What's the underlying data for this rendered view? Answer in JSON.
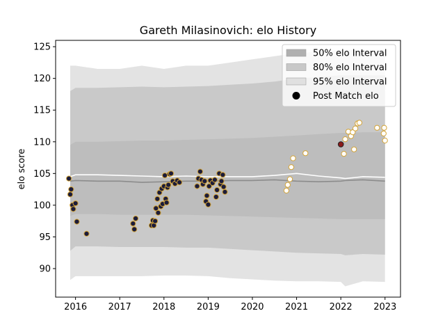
{
  "chart_data": {
    "type": "scatter",
    "title": "Gareth Milasinovich: elo History",
    "xlabel": "",
    "ylabel": "elo score",
    "xlim": [
      2015.55,
      2023.35
    ],
    "ylim": [
      85.5,
      126
    ],
    "x_ticks": [
      {
        "value": 2016,
        "label": "2016"
      },
      {
        "value": 2017,
        "label": "2017"
      },
      {
        "value": 2018,
        "label": "2018"
      },
      {
        "value": 2019,
        "label": "2019"
      },
      {
        "value": 2020,
        "label": "2020"
      },
      {
        "value": 2021,
        "label": "2021"
      },
      {
        "value": 2022,
        "label": "2022"
      },
      {
        "value": 2023,
        "label": "2023"
      }
    ],
    "y_ticks": [
      {
        "value": 90,
        "label": "90"
      },
      {
        "value": 95,
        "label": "95"
      },
      {
        "value": 100,
        "label": "100"
      },
      {
        "value": 105,
        "label": "105"
      },
      {
        "value": 110,
        "label": "110"
      },
      {
        "value": 115,
        "label": "115"
      },
      {
        "value": 120,
        "label": "120"
      },
      {
        "value": 125,
        "label": "125"
      }
    ],
    "grid": false,
    "legend_position": "top-right",
    "legend": [
      {
        "label": "50% elo Interval",
        "kind": "patch",
        "color": "#b0b0b0"
      },
      {
        "label": "80% elo Interval",
        "kind": "patch",
        "color": "#c8c8c8"
      },
      {
        "label": "95% elo Interval",
        "kind": "patch",
        "color": "#e0e0e0"
      },
      {
        "label": "Post Match elo",
        "kind": "marker",
        "color": "#000000"
      }
    ],
    "colors": {
      "band95": "#e3e3e3",
      "band80": "#c9c9c9",
      "band50": "#bdbdbd",
      "median_line": "#8c8c8c",
      "mean_line": "#ffffff",
      "dot_dark_fill": "#1c1c3a",
      "dot_edge": "#d4a437",
      "dot_light_fill": "#ffffff",
      "dot_current_fill": "#8b1a1a"
    },
    "interval_x": [
      2015.88,
      2016.0,
      2016.5,
      2017.0,
      2017.5,
      2018.0,
      2018.5,
      2019.0,
      2019.5,
      2020.0,
      2020.5,
      2021.0,
      2021.5,
      2022.0,
      2022.1,
      2022.5,
      2023.0
    ],
    "band95": {
      "upper": [
        122.0,
        122.0,
        121.5,
        121.5,
        122.0,
        121.5,
        122.0,
        122.0,
        122.5,
        123.0,
        123.5,
        124.0,
        124.2,
        124.5,
        124.5,
        124.5,
        124.5
      ],
      "lower": [
        88.2,
        88.8,
        88.8,
        88.8,
        88.8,
        88.9,
        88.9,
        88.8,
        88.5,
        88.3,
        88.1,
        88.0,
        88.0,
        87.9,
        87.2,
        88.0,
        87.9
      ]
    },
    "band80": {
      "upper": [
        118.0,
        118.5,
        118.5,
        118.6,
        118.7,
        118.6,
        118.7,
        118.8,
        119.0,
        119.2,
        119.5,
        120.0,
        120.2,
        120.5,
        120.5,
        120.5,
        120.5
      ],
      "lower": [
        92.8,
        93.5,
        93.5,
        93.4,
        93.4,
        93.4,
        93.3,
        93.3,
        93.1,
        92.9,
        92.7,
        92.5,
        92.4,
        92.3,
        92.1,
        92.3,
        92.2
      ]
    },
    "band50": {
      "upper": [
        109.5,
        110.0,
        110.0,
        110.1,
        110.2,
        110.2,
        110.3,
        110.4,
        110.5,
        110.6,
        110.8,
        111.0,
        111.2,
        111.4,
        111.4,
        111.5,
        111.5
      ],
      "lower": [
        98.3,
        98.6,
        98.6,
        98.5,
        98.5,
        98.5,
        98.5,
        98.4,
        98.3,
        98.2,
        98.1,
        98.0,
        97.9,
        97.8,
        97.8,
        97.8,
        97.8
      ]
    },
    "median_line": [
      103.8,
      103.9,
      103.8,
      103.8,
      103.6,
      103.7,
      103.8,
      103.8,
      103.9,
      103.9,
      104.0,
      103.8,
      103.7,
      103.8,
      103.9,
      104.0,
      103.8
    ],
    "mean_line": [
      104.5,
      104.8,
      104.8,
      104.7,
      104.6,
      104.5,
      104.6,
      104.5,
      104.5,
      104.5,
      104.7,
      105.0,
      104.6,
      104.3,
      104.2,
      104.5,
      104.4
    ],
    "points_dark": [
      {
        "x": 2015.85,
        "y": 104.2
      },
      {
        "x": 2015.88,
        "y": 101.7
      },
      {
        "x": 2015.9,
        "y": 102.5
      },
      {
        "x": 2015.93,
        "y": 100.0
      },
      {
        "x": 2015.95,
        "y": 99.4
      },
      {
        "x": 2016.0,
        "y": 100.3
      },
      {
        "x": 2016.03,
        "y": 97.4
      },
      {
        "x": 2016.25,
        "y": 95.5
      },
      {
        "x": 2017.3,
        "y": 97.1
      },
      {
        "x": 2017.33,
        "y": 96.2
      },
      {
        "x": 2017.36,
        "y": 97.9
      },
      {
        "x": 2017.72,
        "y": 96.8
      },
      {
        "x": 2017.75,
        "y": 97.6
      },
      {
        "x": 2017.77,
        "y": 96.8
      },
      {
        "x": 2017.8,
        "y": 97.5
      },
      {
        "x": 2017.82,
        "y": 99.5
      },
      {
        "x": 2017.85,
        "y": 101.0
      },
      {
        "x": 2017.87,
        "y": 98.8
      },
      {
        "x": 2017.9,
        "y": 102.0
      },
      {
        "x": 2017.93,
        "y": 99.8
      },
      {
        "x": 2017.95,
        "y": 102.6
      },
      {
        "x": 2017.97,
        "y": 100.2
      },
      {
        "x": 2018.0,
        "y": 103.0
      },
      {
        "x": 2018.02,
        "y": 104.7
      },
      {
        "x": 2018.04,
        "y": 101.0
      },
      {
        "x": 2018.06,
        "y": 100.4
      },
      {
        "x": 2018.08,
        "y": 102.8
      },
      {
        "x": 2018.1,
        "y": 103.2
      },
      {
        "x": 2018.13,
        "y": 104.9
      },
      {
        "x": 2018.16,
        "y": 105.0
      },
      {
        "x": 2018.2,
        "y": 103.8
      },
      {
        "x": 2018.25,
        "y": 103.4
      },
      {
        "x": 2018.3,
        "y": 103.9
      },
      {
        "x": 2018.35,
        "y": 103.6
      },
      {
        "x": 2018.75,
        "y": 103.0
      },
      {
        "x": 2018.78,
        "y": 104.2
      },
      {
        "x": 2018.82,
        "y": 105.3
      },
      {
        "x": 2018.85,
        "y": 104.0
      },
      {
        "x": 2018.88,
        "y": 103.3
      },
      {
        "x": 2018.92,
        "y": 103.8
      },
      {
        "x": 2018.95,
        "y": 100.6
      },
      {
        "x": 2018.97,
        "y": 101.5
      },
      {
        "x": 2019.0,
        "y": 100.1
      },
      {
        "x": 2019.02,
        "y": 103.0
      },
      {
        "x": 2019.05,
        "y": 103.9
      },
      {
        "x": 2019.1,
        "y": 103.5
      },
      {
        "x": 2019.15,
        "y": 104.0
      },
      {
        "x": 2019.18,
        "y": 101.3
      },
      {
        "x": 2019.2,
        "y": 102.4
      },
      {
        "x": 2019.25,
        "y": 105.0
      },
      {
        "x": 2019.28,
        "y": 103.3
      },
      {
        "x": 2019.3,
        "y": 103.8
      },
      {
        "x": 2019.33,
        "y": 104.8
      },
      {
        "x": 2019.35,
        "y": 102.9
      },
      {
        "x": 2019.38,
        "y": 102.1
      }
    ],
    "points_light": [
      {
        "x": 2020.77,
        "y": 102.3
      },
      {
        "x": 2020.8,
        "y": 103.2
      },
      {
        "x": 2020.85,
        "y": 104.1
      },
      {
        "x": 2020.88,
        "y": 106.0
      },
      {
        "x": 2020.92,
        "y": 107.4
      },
      {
        "x": 2021.2,
        "y": 108.2
      },
      {
        "x": 2022.07,
        "y": 108.1
      },
      {
        "x": 2022.1,
        "y": 110.4
      },
      {
        "x": 2022.17,
        "y": 111.6
      },
      {
        "x": 2022.23,
        "y": 110.9
      },
      {
        "x": 2022.27,
        "y": 111.5
      },
      {
        "x": 2022.3,
        "y": 108.8
      },
      {
        "x": 2022.33,
        "y": 112.1
      },
      {
        "x": 2022.38,
        "y": 112.9
      },
      {
        "x": 2022.42,
        "y": 113.0
      },
      {
        "x": 2022.82,
        "y": 112.2
      },
      {
        "x": 2022.97,
        "y": 111.3
      },
      {
        "x": 2022.98,
        "y": 112.2
      },
      {
        "x": 2023.0,
        "y": 110.2
      }
    ],
    "point_current": {
      "x": 2022.0,
      "y": 109.6
    }
  }
}
